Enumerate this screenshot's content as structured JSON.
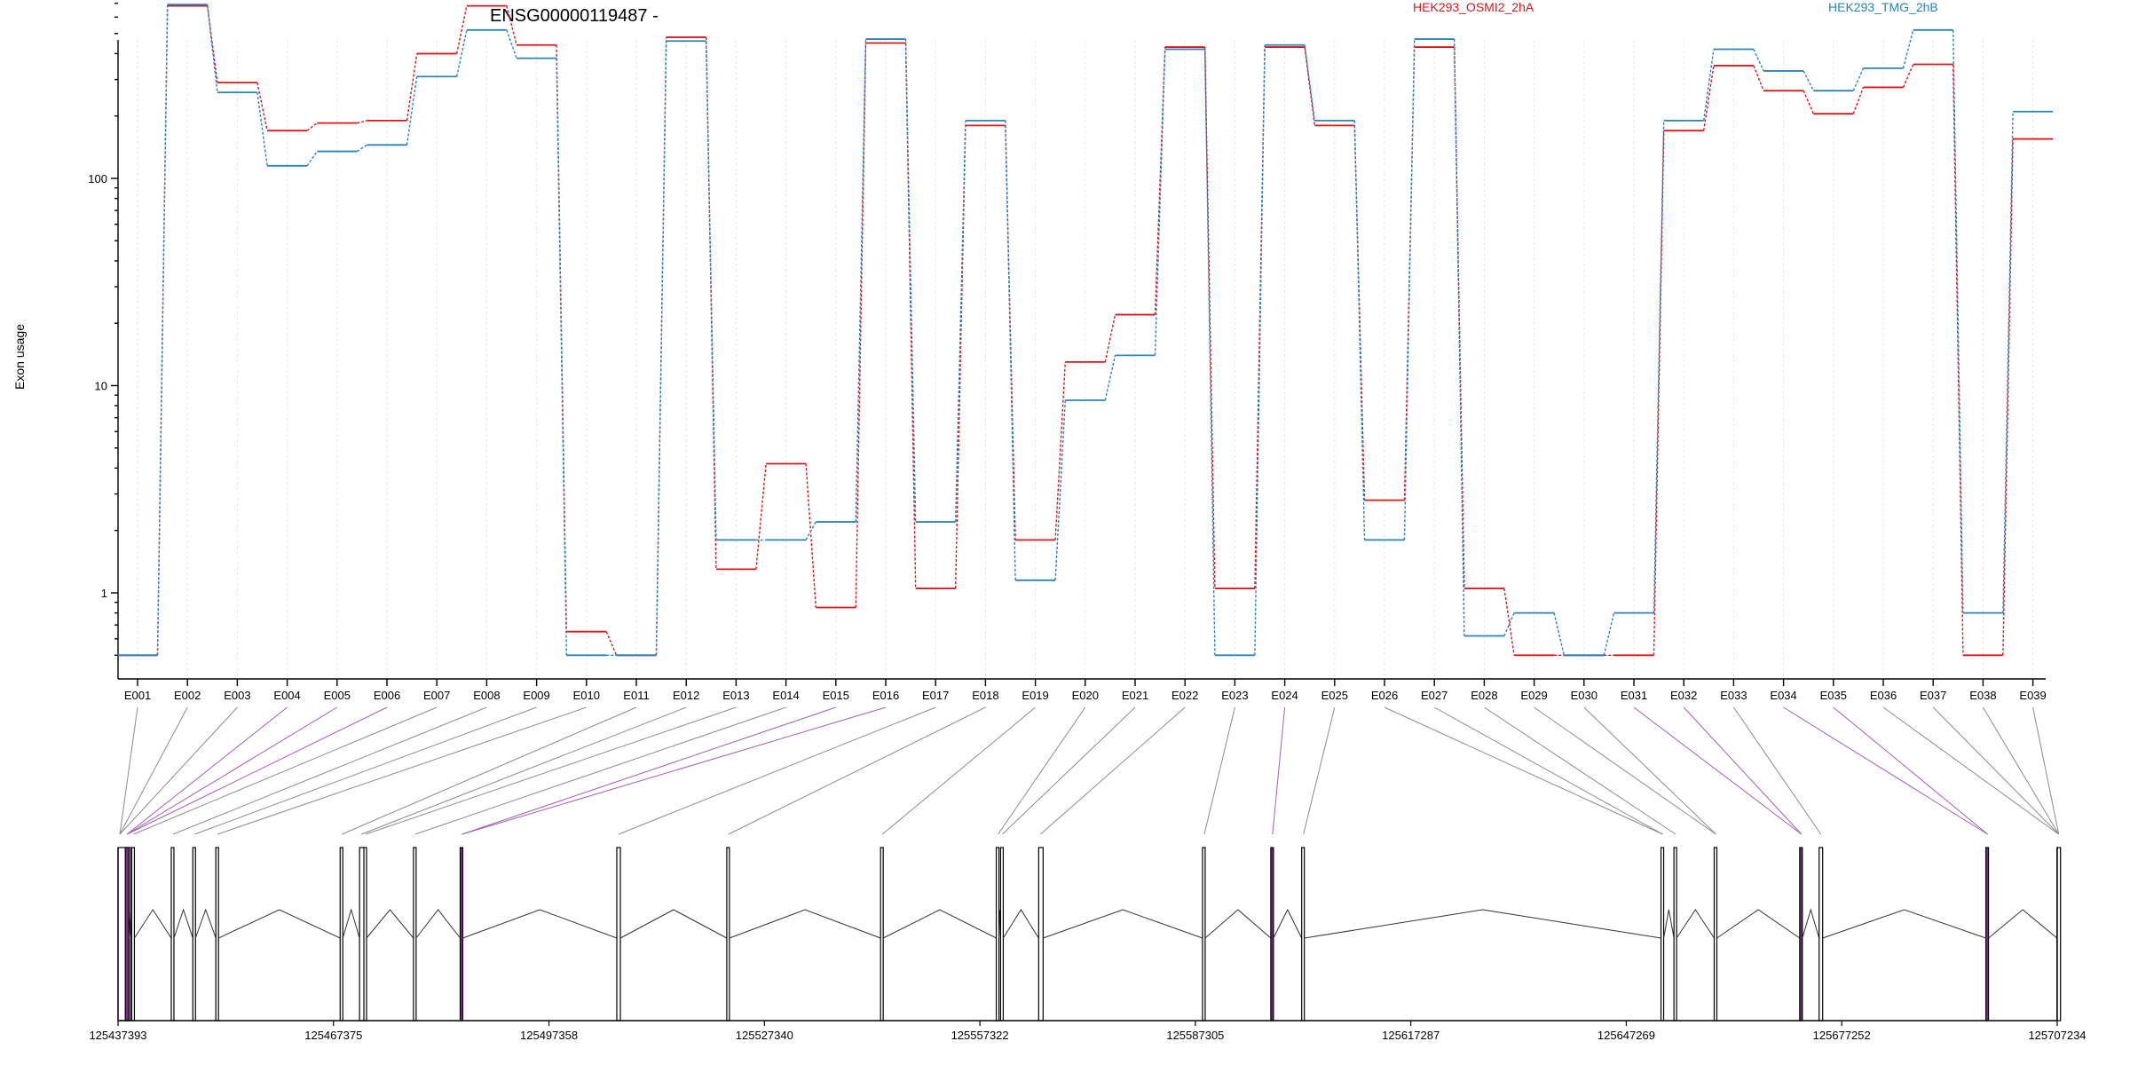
{
  "chart_data": {
    "type": "line",
    "title": "ENSG00000119487 -",
    "xlabel": "",
    "ylabel": "Exon usage",
    "yscale": "log",
    "ylim": [
      0.5,
      800
    ],
    "ytick_labels": [
      "1",
      "10",
      "100"
    ],
    "ytick_values": [
      1,
      10,
      100
    ],
    "grid": true,
    "legend": "top-right",
    "categories": [
      "E001",
      "E002",
      "E003",
      "E004",
      "E005",
      "E006",
      "E007",
      "E008",
      "E009",
      "E010",
      "E011",
      "E012",
      "E013",
      "E014",
      "E015",
      "E016",
      "E017",
      "E018",
      "E019",
      "E020",
      "E021",
      "E022",
      "E023",
      "E024",
      "E025",
      "E026",
      "E027",
      "E028",
      "E029",
      "E030",
      "E031",
      "E032",
      "E033",
      "E034",
      "E035",
      "E036",
      "E037",
      "E038",
      "E039"
    ],
    "series": [
      {
        "name": "HEK293_OSMI2_2hA",
        "color": "#d7191c",
        "values": [
          0.5,
          680,
          290,
          170,
          185,
          190,
          400,
          680,
          440,
          0.65,
          0.5,
          480,
          1.3,
          4.2,
          0.85,
          450,
          1.05,
          180,
          1.8,
          13,
          22,
          430,
          1.05,
          430,
          180,
          2.8,
          430,
          1.05,
          0.5,
          0.5,
          0.5,
          170,
          350,
          265,
          205,
          275,
          355,
          0.5,
          155
        ]
      },
      {
        "name": "HEK293_TMG_2hB",
        "color": "#2b83ba",
        "values": [
          0.5,
          690,
          260,
          115,
          135,
          145,
          310,
          520,
          380,
          0.5,
          0.5,
          460,
          1.8,
          1.8,
          2.2,
          470,
          2.2,
          190,
          1.15,
          8.5,
          14,
          420,
          0.5,
          440,
          190,
          1.8,
          470,
          0.62,
          0.8,
          0.5,
          0.8,
          190,
          420,
          330,
          265,
          340,
          520,
          0.8,
          210
        ]
      }
    ],
    "genomic_axis": {
      "tick_labels": [
        "125437393",
        "125467375",
        "125497358",
        "125527340",
        "125557322",
        "125587305",
        "125617287",
        "125647269",
        "125677252",
        "125707234"
      ],
      "start": 125437393,
      "end": 125707234,
      "exon_starts": [
        125437393,
        125438400,
        125439300,
        125444800,
        125447800,
        125451000,
        125468300,
        125471000,
        125471600,
        125478500,
        125485000,
        125506800,
        125522100,
        125543500,
        125559600,
        125560200,
        125565500,
        125588300,
        125597800,
        125602100,
        125652100,
        125653900,
        125659500,
        125671400,
        125674100,
        125697300,
        125707200
      ],
      "highlight_exon_indices": [
        1,
        10,
        18,
        23,
        25
      ],
      "exon_to_feature": [
        0,
        0,
        0,
        1,
        1,
        1,
        2,
        3,
        4,
        5,
        6,
        7,
        8,
        9,
        10,
        10,
        11,
        12,
        13,
        14,
        15,
        16,
        17,
        18,
        19,
        20,
        20,
        21,
        22,
        22,
        23,
        23,
        24,
        25,
        25,
        26,
        26,
        26,
        26
      ]
    }
  }
}
